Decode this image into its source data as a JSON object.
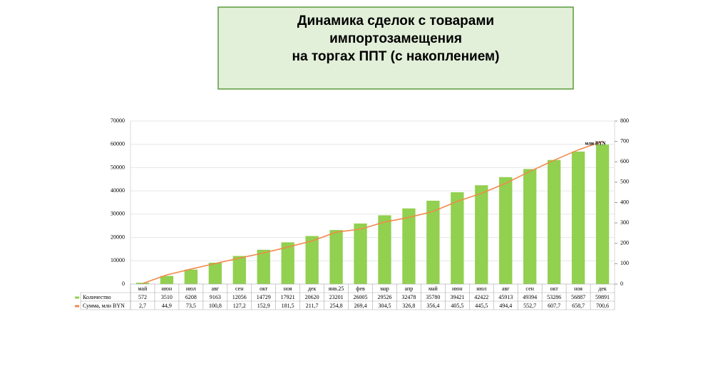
{
  "chart_data": {
    "type": "bar-line",
    "title": [
      "Динамика сделок с товарами",
      "импортозамещения",
      "на торгах ППТ (с накоплением)"
    ],
    "categories": [
      "май",
      "июн",
      "июл",
      "авг",
      "сен",
      "окт",
      "ноя",
      "дек",
      "янв.25",
      "фев",
      "мар",
      "апр",
      "май",
      "июн",
      "июл",
      "авг",
      "сен",
      "окт",
      "ноя",
      "дек"
    ],
    "series": [
      {
        "name": "Количество",
        "type": "bar",
        "color": "#92d050",
        "values": [
          572,
          3510,
          6208,
          9163,
          12056,
          14729,
          17921,
          20620,
          23201,
          26005,
          29526,
          32478,
          35780,
          39421,
          42422,
          45913,
          49394,
          53286,
          56887,
          59891
        ]
      },
      {
        "name": "Сумма, млн BYN",
        "type": "line",
        "axis": "y2",
        "color": "#f08a4b",
        "values": [
          2.7,
          44.9,
          73.5,
          100.8,
          127.2,
          152.9,
          181.5,
          211.7,
          254.8,
          269.4,
          304.5,
          326.8,
          356.4,
          405.5,
          445.5,
          494.4,
          552.7,
          607.7,
          658.7,
          700.6
        ],
        "value_labels": [
          "2,7",
          "44,9",
          "73,5",
          "100,8",
          "127,2",
          "152,9",
          "181,5",
          "211,7",
          "254,8",
          "269,4",
          "304,5",
          "326,8",
          "356,4",
          "405,5",
          "445,5",
          "494,4",
          "552,7",
          "607,7",
          "658,7",
          "700,6"
        ]
      }
    ],
    "annotation": "млн BYN",
    "ylim": [
      0,
      70000
    ],
    "yticks": [
      0,
      10000,
      20000,
      30000,
      40000,
      50000,
      60000,
      70000
    ],
    "y2lim": [
      0,
      800
    ],
    "y2ticks": [
      0,
      100,
      200,
      300,
      400,
      500,
      600,
      700,
      800
    ],
    "grid": true
  }
}
